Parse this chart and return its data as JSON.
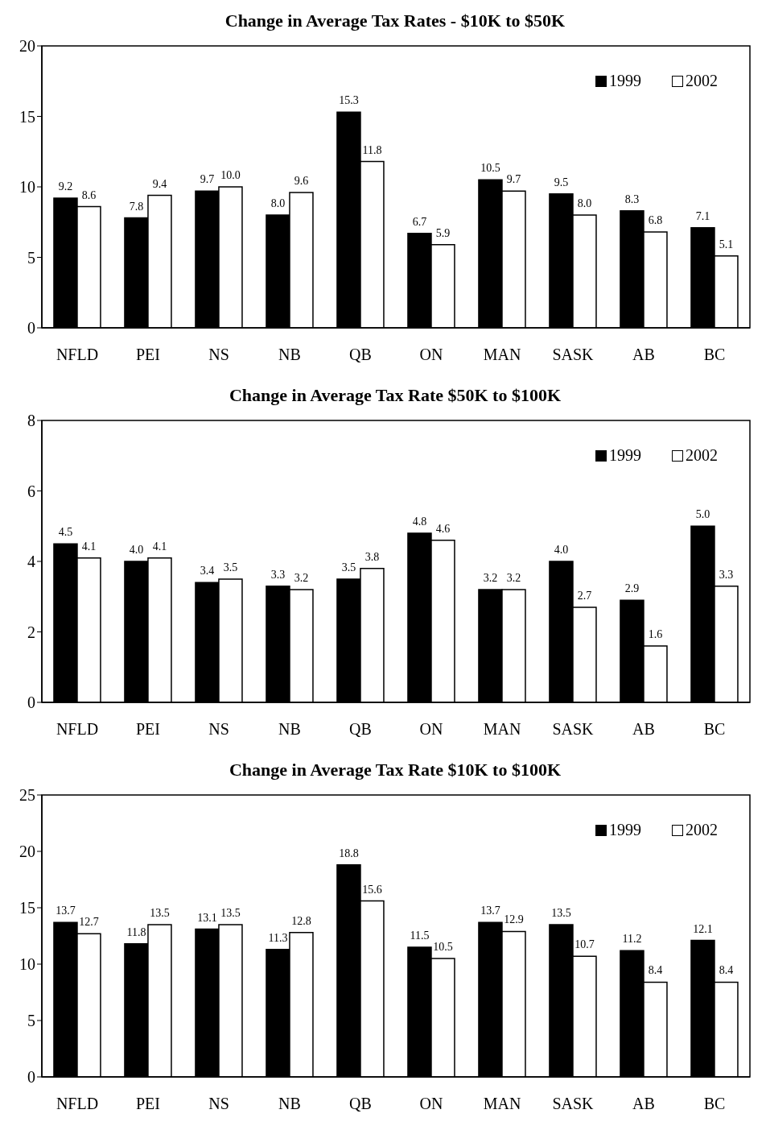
{
  "chart_data": [
    {
      "type": "bar",
      "title": "Change in Average Tax Rates - $10K to $50K",
      "categories": [
        "NFLD",
        "PEI",
        "NS",
        "NB",
        "QB",
        "ON",
        "MAN",
        "SASK",
        "AB",
        "BC"
      ],
      "series": [
        {
          "name": "1999",
          "color": "#000000",
          "values": [
            9.2,
            7.8,
            9.7,
            8.0,
            15.3,
            6.7,
            10.5,
            9.5,
            8.3,
            7.1
          ],
          "value_labels": [
            "9.2",
            "7.8",
            "9.7",
            "8.0",
            "15.3",
            "6.7",
            "10.5",
            "9.5",
            "8.3",
            "7.1"
          ]
        },
        {
          "name": "2002",
          "color": "#ffffff",
          "values": [
            8.6,
            9.4,
            10.0,
            9.6,
            11.8,
            5.9,
            9.7,
            8.0,
            6.8,
            5.1
          ],
          "value_labels": [
            "8.6",
            "9.4",
            "10.0",
            "9.6",
            "11.8",
            "5.9",
            "9.7",
            "8.0",
            "6.8",
            "5.1"
          ]
        }
      ],
      "ylim": [
        0,
        20
      ],
      "yticks": [
        0,
        5,
        10,
        15,
        20
      ],
      "legend": "top right"
    },
    {
      "type": "bar",
      "title": "Change in Average Tax Rate $50K to $100K",
      "categories": [
        "NFLD",
        "PEI",
        "NS",
        "NB",
        "QB",
        "ON",
        "MAN",
        "SASK",
        "AB",
        "BC"
      ],
      "series": [
        {
          "name": "1999",
          "color": "#000000",
          "values": [
            4.5,
            4.0,
            3.4,
            3.3,
            3.5,
            4.8,
            3.2,
            4.0,
            2.9,
            5.0
          ],
          "value_labels": [
            "4.5",
            "4.0",
            "3.4",
            "3.3",
            "3.5",
            "4.8",
            "3.2",
            "4.0",
            "2.9",
            "5.0"
          ]
        },
        {
          "name": "2002",
          "color": "#ffffff",
          "values": [
            4.1,
            4.1,
            3.5,
            3.2,
            3.8,
            4.6,
            3.2,
            2.7,
            1.6,
            3.3
          ],
          "value_labels": [
            "4.1",
            "4.1",
            "3.5",
            "3.2",
            "3.8",
            "4.6",
            "3.2",
            "2.7",
            "1.6",
            "3.3"
          ]
        }
      ],
      "ylim": [
        0,
        8
      ],
      "yticks": [
        0,
        2,
        4,
        6,
        8
      ],
      "legend": "top right"
    },
    {
      "type": "bar",
      "title": "Change in Average Tax Rate $10K to $100K",
      "categories": [
        "NFLD",
        "PEI",
        "NS",
        "NB",
        "QB",
        "ON",
        "MAN",
        "SASK",
        "AB",
        "BC"
      ],
      "series": [
        {
          "name": "1999",
          "color": "#000000",
          "values": [
            13.7,
            11.8,
            13.1,
            11.3,
            18.8,
            11.5,
            13.7,
            13.5,
            11.2,
            12.1
          ],
          "value_labels": [
            "13.7",
            "11.8",
            "13.1",
            "11.3",
            "18.8",
            "11.5",
            "13.7",
            "13.5",
            "11.2",
            "12.1"
          ]
        },
        {
          "name": "2002",
          "color": "#ffffff",
          "values": [
            12.7,
            13.5,
            13.5,
            12.8,
            15.6,
            10.5,
            12.9,
            10.7,
            8.4,
            8.4
          ],
          "value_labels": [
            "12.7",
            "13.5",
            "13.5",
            "12.8",
            "15.6",
            "10.5",
            "12.9",
            "10.7",
            "8.4",
            "8.4"
          ]
        }
      ],
      "ylim": [
        0,
        25
      ],
      "yticks": [
        0,
        5,
        10,
        15,
        20,
        25
      ],
      "legend": "top right"
    }
  ]
}
